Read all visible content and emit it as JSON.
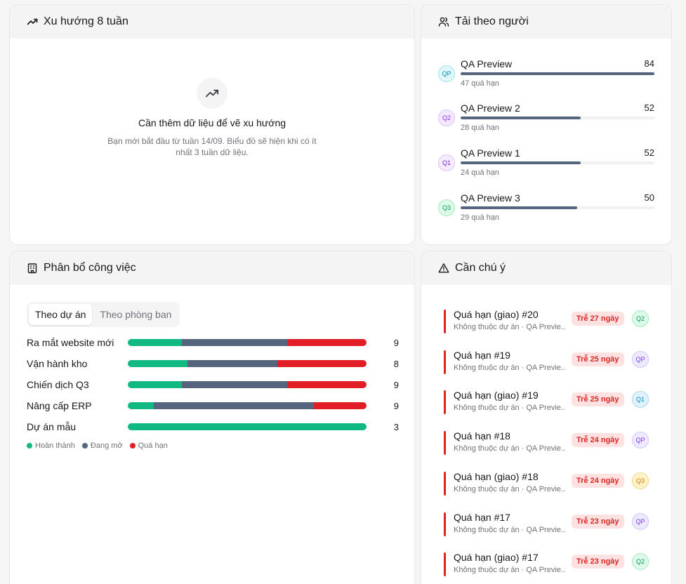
{
  "trend": {
    "title": "Xu hướng 8 tuần",
    "empty_title": "Cần thêm dữ liệu để vẽ xu hướng",
    "empty_desc": "Bạn mới bắt đầu từ tuần 14/09. Biểu đồ sẽ hiện khi có ít nhất 3 tuần dữ liệu."
  },
  "load": {
    "title": "Tải theo người",
    "people": [
      {
        "initials": "QP",
        "name": "QA Preview",
        "count": "84",
        "fill": 1.0,
        "sub": "47 quá hạn",
        "color": "#0891b2",
        "bg": "#e0f7fb",
        "border": "#a5e3ee"
      },
      {
        "initials": "Q2",
        "name": "QA Preview 2",
        "count": "52",
        "fill": 0.62,
        "sub": "28 quá hạn",
        "color": "#9333ea",
        "bg": "#f3e8ff",
        "border": "#dcc2fb"
      },
      {
        "initials": "Q1",
        "name": "QA Preview 1",
        "count": "52",
        "fill": 0.62,
        "sub": "24 quá hạn",
        "color": "#7e22ce",
        "bg": "#f5edff",
        "border": "#dcc2fb"
      },
      {
        "initials": "Q3",
        "name": "QA Preview 3",
        "count": "50",
        "fill": 0.6,
        "sub": "29 quá hạn",
        "color": "#059669",
        "bg": "#dcfce7",
        "border": "#a7e8c4"
      }
    ]
  },
  "alloc": {
    "title": "Phân bổ công việc",
    "tabs": [
      "Theo dự án",
      "Theo phòng ban"
    ],
    "colors": {
      "done": "#10b981",
      "open": "#55657e",
      "overdue": "#e11d26"
    },
    "rows": [
      {
        "name": "Ra mắt website mới",
        "count": "9",
        "done": 0.225,
        "open": 0.445,
        "overdue": 0.33
      },
      {
        "name": "Vận hành kho",
        "count": "8",
        "done": 0.25,
        "open": 0.375,
        "overdue": 0.375
      },
      {
        "name": "Chiến dịch Q3",
        "count": "9",
        "done": 0.225,
        "open": 0.445,
        "overdue": 0.33
      },
      {
        "name": "Nâng cấp ERP",
        "count": "9",
        "done": 0.11,
        "open": 0.67,
        "overdue": 0.22
      },
      {
        "name": "Dự án mẫu",
        "count": "3",
        "done": 1.0,
        "open": 0,
        "overdue": 0
      }
    ],
    "legend": [
      "Hoàn thành",
      "Đang mở",
      "Quá hạn"
    ]
  },
  "attn": {
    "title": "Cần chú ý",
    "items": [
      {
        "title": "Quá hạn (giao) #20",
        "sub": "Không thuộc dự án · QA Previe...",
        "badge": "Trễ 27 ngày",
        "initials": "Q2",
        "color": "#059669",
        "bg": "#dcfce7",
        "border": "#a7e8c4"
      },
      {
        "title": "Quá hạn #19",
        "sub": "Không thuộc dự án · QA Previe...",
        "badge": "Trễ 25 ngày",
        "initials": "QP",
        "color": "#7c3aed",
        "bg": "#ede9fe",
        "border": "#d4c6fb"
      },
      {
        "title": "Quá hạn (giao) #19",
        "sub": "Không thuộc dự án · QA Previe...",
        "badge": "Trễ 25 ngày",
        "initials": "Q1",
        "color": "#0284c7",
        "bg": "#e0f2fe",
        "border": "#a9d8f5"
      },
      {
        "title": "Quá hạn #18",
        "sub": "Không thuộc dự án · QA Previe...",
        "badge": "Trễ 24 ngày",
        "initials": "QP",
        "color": "#7c3aed",
        "bg": "#ede9fe",
        "border": "#d4c6fb"
      },
      {
        "title": "Quá hạn (giao) #18",
        "sub": "Không thuộc dự án · QA Previe...",
        "badge": "Trễ 24 ngày",
        "initials": "Q3",
        "color": "#d97706",
        "bg": "#fef3c7",
        "border": "#f5d68c"
      },
      {
        "title": "Quá hạn #17",
        "sub": "Không thuộc dự án · QA Previe...",
        "badge": "Trễ 23 ngày",
        "initials": "QP",
        "color": "#7c3aed",
        "bg": "#ede9fe",
        "border": "#d4c6fb"
      },
      {
        "title": "Quá hạn (giao) #17",
        "sub": "Không thuộc dự án · QA Previe...",
        "badge": "Trễ 23 ngày",
        "initials": "Q2",
        "color": "#059669",
        "bg": "#dcfce7",
        "border": "#a7e8c4"
      }
    ]
  }
}
